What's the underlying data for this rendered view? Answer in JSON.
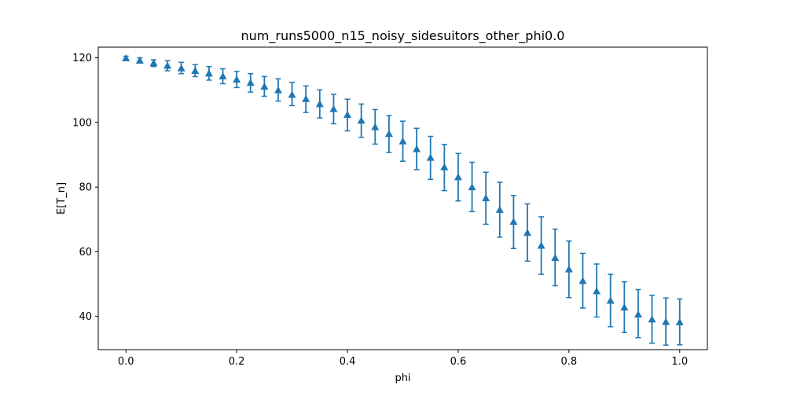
{
  "chart_data": {
    "type": "scatter",
    "title": "num_runs5000_n15_noisy_sidesuitors_other_phi0.0",
    "xlabel": "phi",
    "ylabel": "E[T_n]",
    "xlim": [
      -0.05,
      1.05
    ],
    "ylim": [
      29.7,
      123.3
    ],
    "xticks": [
      0.0,
      0.2,
      0.4,
      0.6,
      0.8,
      1.0
    ],
    "xtick_labels": [
      "0.0",
      "0.2",
      "0.4",
      "0.6",
      "0.8",
      "1.0"
    ],
    "yticks": [
      40,
      60,
      80,
      100,
      120
    ],
    "ytick_labels": [
      "40",
      "60",
      "80",
      "100",
      "120"
    ],
    "grid": false,
    "marker": "triangle-up",
    "color": "#1f77b4",
    "series": [
      {
        "x": [
          0.0,
          0.025,
          0.05,
          0.075,
          0.1,
          0.125,
          0.15,
          0.175,
          0.2,
          0.225,
          0.25,
          0.275,
          0.3,
          0.325,
          0.35,
          0.375,
          0.4,
          0.425,
          0.45,
          0.475,
          0.5,
          0.525,
          0.55,
          0.575,
          0.6,
          0.625,
          0.65,
          0.675,
          0.7,
          0.725,
          0.75,
          0.775,
          0.8,
          0.825,
          0.85,
          0.875,
          0.9,
          0.925,
          0.95,
          0.975,
          1.0
        ],
        "y": [
          119.9,
          119.2,
          118.4,
          117.6,
          116.8,
          116.0,
          115.2,
          114.3,
          113.3,
          112.3,
          111.1,
          110.0,
          108.6,
          107.3,
          105.7,
          104.2,
          102.4,
          100.6,
          98.6,
          96.5,
          94.2,
          91.8,
          89.1,
          86.2,
          83.1,
          80.0,
          76.6,
          73.0,
          69.3,
          65.9,
          61.9,
          58.1,
          54.6,
          51.0,
          47.8,
          44.9,
          42.8,
          40.6,
          39.1,
          38.3,
          38.2
        ],
        "err_low": [
          119.4,
          118.4,
          117.3,
          116.0,
          115.1,
          114.2,
          113.1,
          112.0,
          110.8,
          109.4,
          108.1,
          106.6,
          105.2,
          103.1,
          101.4,
          99.6,
          97.4,
          95.4,
          93.3,
          90.7,
          88.0,
          85.4,
          82.4,
          78.9,
          75.7,
          72.4,
          68.5,
          64.5,
          61.0,
          57.1,
          53.0,
          49.5,
          45.8,
          42.6,
          39.8,
          36.8,
          35.0,
          33.4,
          31.7,
          31.1,
          31.2
        ],
        "err_high": [
          120.5,
          120.0,
          119.4,
          119.1,
          118.6,
          117.9,
          117.3,
          116.6,
          115.8,
          115.1,
          114.2,
          113.5,
          112.4,
          111.3,
          110.1,
          108.7,
          107.2,
          105.7,
          104.0,
          102.1,
          100.4,
          98.2,
          95.7,
          93.2,
          90.4,
          87.7,
          84.6,
          81.5,
          77.4,
          74.8,
          70.8,
          67.0,
          63.3,
          59.5,
          56.2,
          53.0,
          50.7,
          48.3,
          46.5,
          45.7,
          45.4
        ]
      }
    ]
  }
}
